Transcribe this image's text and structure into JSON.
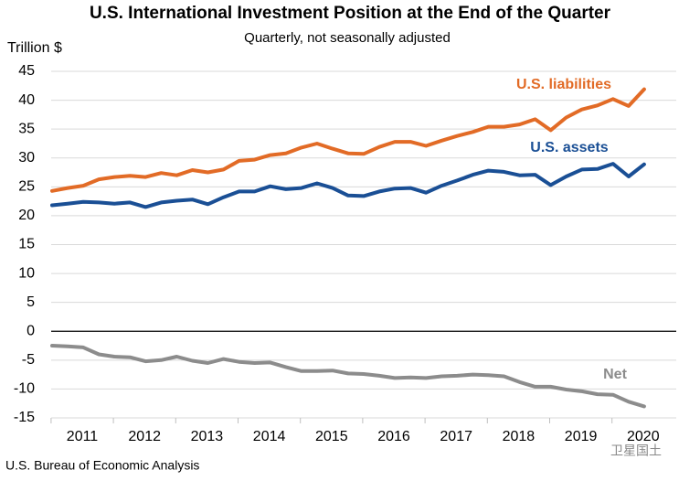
{
  "chart_data": {
    "type": "line",
    "title": "U.S. International Investment Position at the End of the Quarter",
    "subtitle": "Quarterly, not seasonally adjusted",
    "y_axis_label": "Trillion $",
    "source": "U.S. Bureau of Economic Analysis",
    "watermark": "卫星国土",
    "x_labels": [
      "2011",
      "2012",
      "2013",
      "2014",
      "2015",
      "2016",
      "2017",
      "2018",
      "2019",
      "2020"
    ],
    "ylim": [
      -15,
      45
    ],
    "yticks": [
      -15,
      -10,
      -5,
      0,
      5,
      10,
      15,
      20,
      25,
      30,
      35,
      40,
      45
    ],
    "grid": true,
    "series": [
      {
        "name": "U.S. liabilities",
        "color": "#e26b26",
        "values": [
          24.3,
          24.8,
          25.2,
          26.3,
          26.7,
          26.9,
          26.7,
          27.4,
          27.0,
          27.9,
          27.5,
          28.0,
          29.5,
          29.7,
          30.5,
          30.8,
          31.8,
          32.5,
          31.6,
          30.8,
          30.7,
          31.9,
          32.8,
          32.8,
          32.1,
          33.0,
          33.8,
          34.5,
          35.4,
          35.4,
          35.8,
          36.7,
          34.8,
          37.0,
          38.4,
          39.1,
          40.2,
          39.0,
          41.9
        ]
      },
      {
        "name": "U.S. assets",
        "color": "#1a4f95",
        "values": [
          21.8,
          22.1,
          22.4,
          22.3,
          22.1,
          22.3,
          21.5,
          22.3,
          22.6,
          22.8,
          22.0,
          23.2,
          24.2,
          24.2,
          25.1,
          24.6,
          24.8,
          25.6,
          24.8,
          23.5,
          23.4,
          24.2,
          24.7,
          24.8,
          24.0,
          25.2,
          26.1,
          27.1,
          27.8,
          27.6,
          27.0,
          27.1,
          25.3,
          26.8,
          28.0,
          28.1,
          29.0,
          26.8,
          28.9
        ]
      },
      {
        "name": "Net",
        "color": "#8c8c8c",
        "values": [
          -2.5,
          -2.6,
          -2.8,
          -4.0,
          -4.4,
          -4.5,
          -5.2,
          -5.0,
          -4.4,
          -5.1,
          -5.5,
          -4.8,
          -5.3,
          -5.5,
          -5.4,
          -6.2,
          -6.9,
          -6.9,
          -6.8,
          -7.3,
          -7.4,
          -7.7,
          -8.1,
          -8.0,
          -8.1,
          -7.8,
          -7.7,
          -7.5,
          -7.6,
          -7.8,
          -8.8,
          -9.6,
          -9.6,
          -10.1,
          -10.4,
          -10.9,
          -11.0,
          -12.2,
          -13.0
        ]
      }
    ]
  }
}
